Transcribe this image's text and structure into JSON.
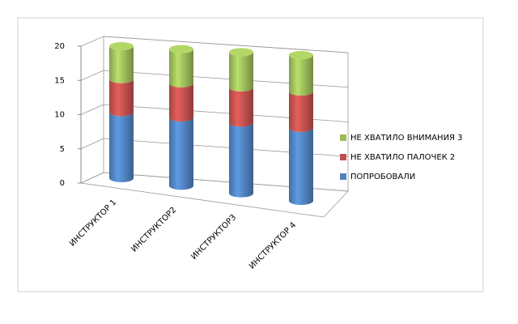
{
  "chart_data": {
    "type": "stacked-cylinder",
    "categories": [
      "ИНСТРУКТОР 1",
      "ИНСТРУКТОР2",
      "ИНСТРУКТОР3",
      "ИНСТРУКТОР 4"
    ],
    "series": [
      {
        "name": "ПОПРОБОВАЛИ",
        "color": "#4f81bd",
        "values": [
          10,
          10,
          10,
          10
        ]
      },
      {
        "name": "НЕ ХВАТИЛО ПАЛОЧЕК 2",
        "color": "#c0504d",
        "values": [
          5,
          5,
          5,
          5
        ]
      },
      {
        "name": "НЕ ХВАТИЛО ВНИМАНИЯ 3",
        "color": "#9bbb59",
        "values": [
          5,
          5,
          5,
          5
        ]
      }
    ],
    "ylim": [
      0,
      20
    ],
    "yticks": [
      0,
      5,
      10,
      15,
      20
    ],
    "grid": true,
    "legend": "right"
  }
}
